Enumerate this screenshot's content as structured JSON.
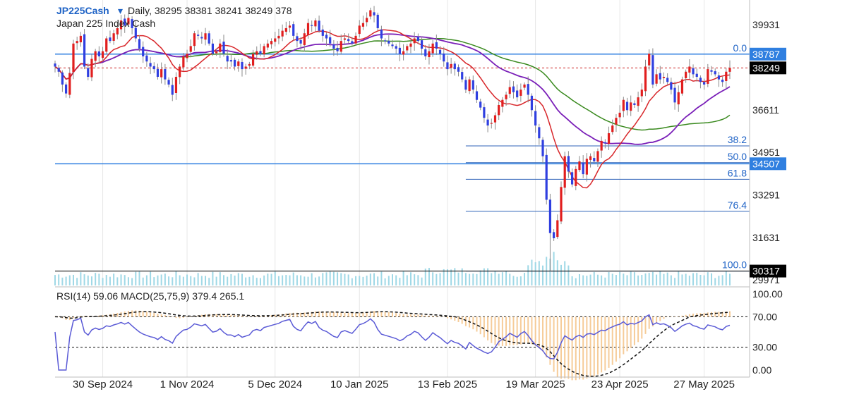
{
  "header": {
    "symbol": "JP225Cash",
    "dropdown_glyph": "▾",
    "ohlc_text": "Daily, 38295 38381 38241 38249 378",
    "name": "Japan 225 Index Cash"
  },
  "indicator_header": "RSI(14)  59.06 MACD(25,75,9)  379.4  265.1",
  "price_axis": {
    "ticks": [
      "39931",
      "36611",
      "34951",
      "33291",
      "31631",
      "29971"
    ],
    "tick_values": [
      39931,
      36611,
      34951,
      33291,
      31631,
      29971
    ],
    "ylim": [
      29700,
      40900
    ]
  },
  "price_tags": [
    {
      "label": "38787",
      "value": 38787,
      "color": "#2f7fe0"
    },
    {
      "label": "38249",
      "value": 38249,
      "color": "#000000"
    },
    {
      "label": "34507",
      "value": 34507,
      "color": "#2f7fe0"
    },
    {
      "label": "30317",
      "value": 30317,
      "color": "#000000"
    }
  ],
  "fib_levels": [
    {
      "label": "0.0",
      "value": 38787
    },
    {
      "label": "38.2",
      "value": 35205
    },
    {
      "label": "50.0",
      "value": 34550
    },
    {
      "label": "61.8",
      "value": 33900
    },
    {
      "label": "76.4",
      "value": 32650
    },
    {
      "label": "100.0",
      "value": 30317
    }
  ],
  "osc_axis": {
    "ticks": [
      "100.00",
      "70.00",
      "30.00",
      "0.00"
    ],
    "tick_values": [
      100,
      70,
      30,
      0
    ]
  },
  "x_axis": {
    "labels": [
      "30 Sep 2024",
      "1 Nov 2024",
      "5 Dec 2024",
      "10 Jan 2025",
      "13 Feb 2025",
      "19 Mar 2025",
      "23 Apr 2025",
      "27 May 2025"
    ],
    "label_index": [
      13,
      36,
      60,
      83,
      107,
      131,
      154,
      177
    ]
  },
  "chart_data": {
    "type": "candlestick",
    "title": "JP225Cash Daily",
    "x_start": "2024-09-18",
    "x_end": "2025-06-02",
    "bar_count": 185,
    "ylim": [
      29700,
      40900
    ],
    "closes": [
      38300,
      38100,
      37600,
      37250,
      38050,
      39200,
      39300,
      39500,
      38300,
      37900,
      38600,
      38900,
      38700,
      38900,
      39400,
      39300,
      39600,
      39800,
      40100,
      39900,
      40200,
      39800,
      39400,
      39000,
      38700,
      38500,
      38300,
      38200,
      37900,
      38200,
      37800,
      37600,
      37200,
      37900,
      38300,
      38700,
      38800,
      39100,
      39600,
      39500,
      39400,
      39600,
      39200,
      38800,
      38900,
      39200,
      38800,
      38500,
      38500,
      38300,
      38500,
      38200,
      38300,
      38400,
      38800,
      38900,
      38800,
      39100,
      39200,
      39300,
      39400,
      39500,
      39700,
      39800,
      39900,
      39500,
      39300,
      39200,
      39600,
      40000,
      39900,
      40100,
      39700,
      39500,
      39400,
      39200,
      39000,
      38900,
      39300,
      39400,
      39300,
      39200,
      39500,
      39900,
      40000,
      40200,
      40500,
      40300,
      39800,
      39400,
      39300,
      39200,
      39100,
      39000,
      38800,
      38900,
      39100,
      39200,
      39400,
      39300,
      39000,
      38700,
      38900,
      39200,
      39000,
      38800,
      38500,
      38200,
      38400,
      38200,
      38100,
      37800,
      37400,
      37800,
      37400,
      37000,
      36700,
      36300,
      36000,
      36100,
      36400,
      36800,
      37000,
      37200,
      37500,
      37300,
      37100,
      37400,
      37600,
      37200,
      36600,
      36000,
      35500,
      34800,
      33100,
      31800,
      31600,
      32300,
      33600,
      34800,
      34200,
      33700,
      34300,
      34600,
      34100,
      34700,
      34800,
      34600,
      35000,
      35400,
      35300,
      35700,
      36000,
      36300,
      36500,
      37000,
      36600,
      36900,
      36800,
      37100,
      37400,
      38300,
      38800,
      37600,
      38000,
      37800,
      37900,
      37700,
      37400,
      36900,
      37300,
      37800,
      38100,
      38300,
      38000,
      37900,
      37700,
      37600,
      38200,
      38100,
      38000,
      37800,
      37700,
      38100,
      38249
    ],
    "series": [
      {
        "name": "RSI(14)",
        "range": [
          0,
          100
        ]
      },
      {
        "name": "MACD(25,75,9)",
        "values_shown": [
          379.4,
          265.1
        ]
      }
    ],
    "rsi_last": 59.06,
    "macd_last": [
      379.4,
      265.1
    ]
  }
}
